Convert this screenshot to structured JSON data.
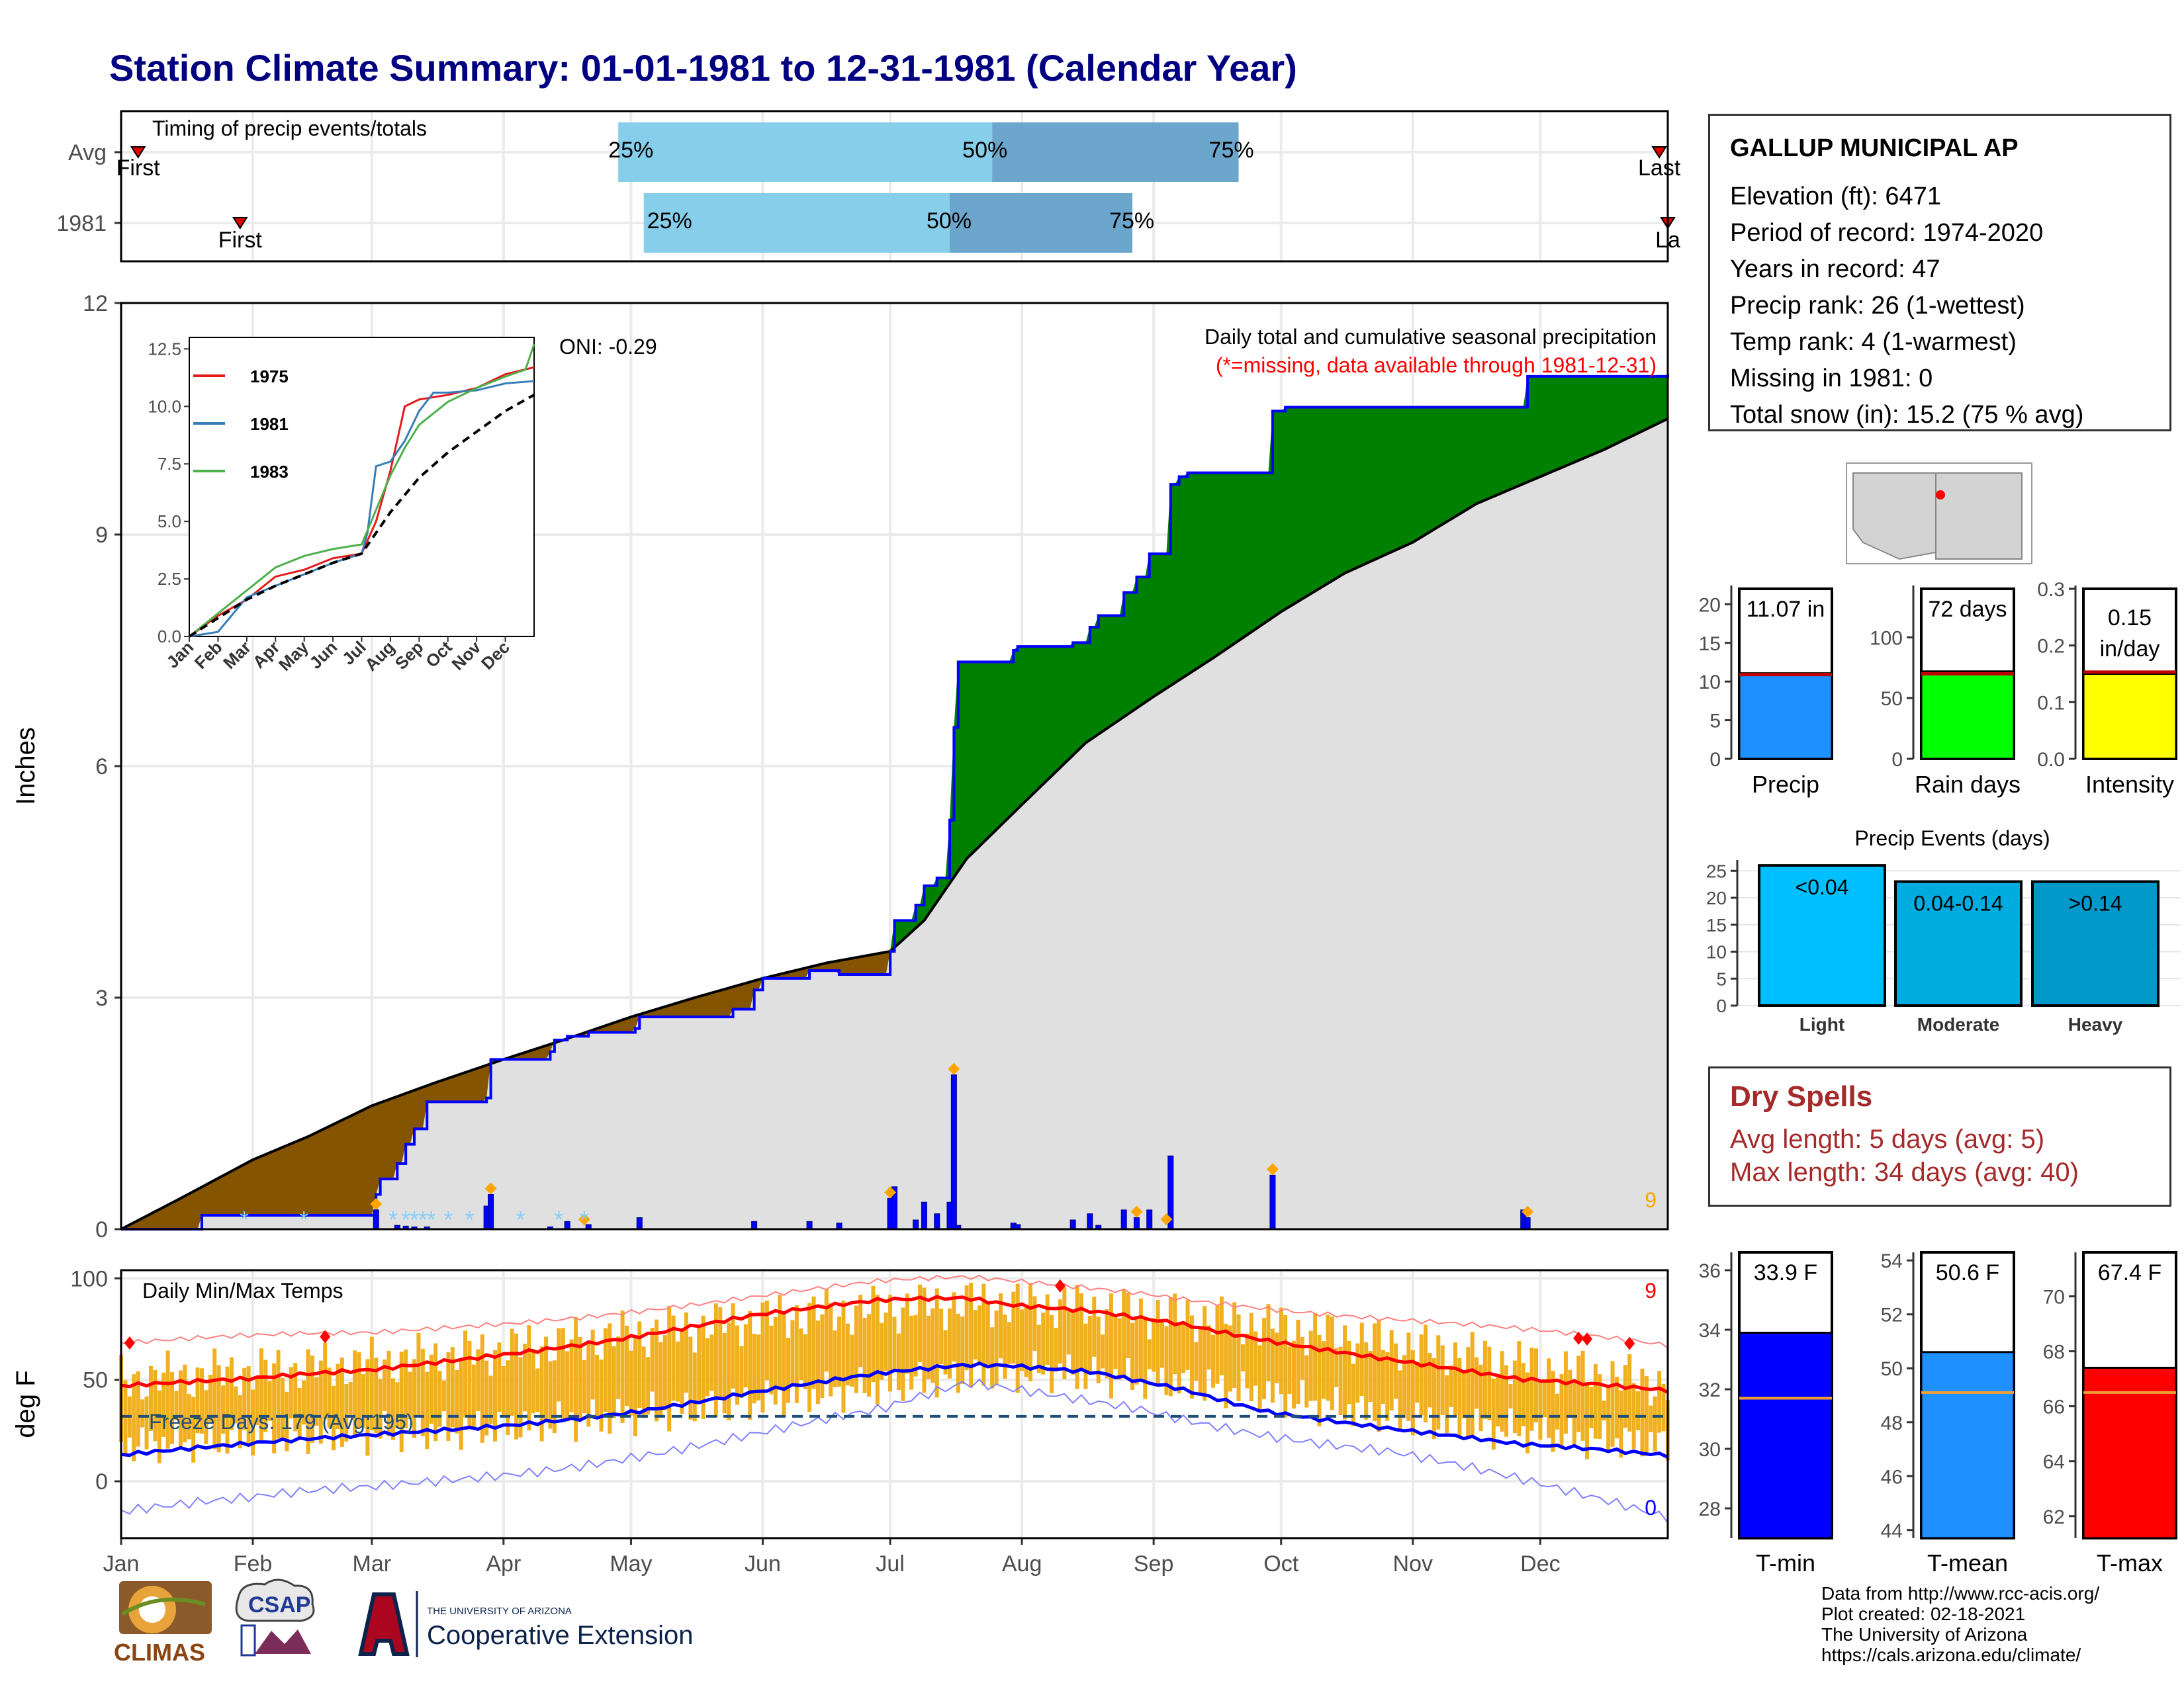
{
  "title": "Station Climate Summary: 01-01-1981 to 12-31-1981 (Calendar Year)",
  "station": {
    "name": "GALLUP MUNICIPAL AP",
    "lines": [
      "Elevation (ft): 6471",
      "Period of record: 1974-2020",
      "Years in record: 47",
      "Precip rank: 26 (1-wettest)",
      "Temp rank: 4 (1-warmest)",
      "Missing in 1981: 0",
      "Total snow (in): 15.2 (75 % avg)"
    ]
  },
  "dry_spells": {
    "title": "Dry Spells",
    "avg_length": "Avg length: 5 days (avg: 5)",
    "max_length": "Max length: 34 days (avg: 40)"
  },
  "credits": [
    "Data from http://www.rcc-acis.org/",
    "Plot created: 02-18-2021",
    "The University of Arizona",
    "https://cals.arizona.edu/climate/"
  ],
  "logos": {
    "climas": "CLIMAS",
    "csap": "CSAP",
    "ua_small": "THE UNIVERSITY OF ARIZONA",
    "ua_big": "Cooperative Extension"
  },
  "colors": {
    "title": "#000080",
    "avg_fill": "#e0e0e0",
    "above_fill": "#008000",
    "below_fill": "#845400",
    "obs_line": "#0000ff",
    "temp_bar": "#f0b020",
    "tmax": "#ff0000",
    "tmin": "#0000ff",
    "dry": "#a52a2a"
  },
  "chart_data": [
    {
      "id": "timing",
      "type": "bar",
      "title": "Timing of precip events/totals",
      "rows": [
        {
          "label": "Avg",
          "first_doy": 5,
          "last_doy": 363,
          "q25_doy": 118,
          "q50_doy": 206,
          "q75_doy": 264,
          "first_label": "First",
          "last_label": "Last"
        },
        {
          "label": "1981",
          "first_doy": 29,
          "last_doy": 365,
          "q25_doy": 124,
          "q50_doy": 196,
          "q75_doy": 239,
          "first_label": "First",
          "last_label": "La"
        }
      ],
      "quantile_labels": [
        "25%",
        "50%",
        "75%"
      ]
    },
    {
      "id": "precip",
      "type": "area",
      "ylabel": "Inches",
      "ylim": [
        0,
        12
      ],
      "yticks": [
        0,
        3,
        6,
        9,
        12
      ],
      "months": [
        "Jan",
        "Feb",
        "Mar",
        "Apr",
        "May",
        "Jun",
        "Jul",
        "Aug",
        "Sep",
        "Oct",
        "Nov",
        "Dec"
      ],
      "label_top": "Daily total and cumulative seasonal precipitation",
      "label_missing": "(*=missing, data available through 1981-12-31)",
      "oni": "ONI: -0.29",
      "corner_count": "9",
      "avg_cumulative": {
        "doy": [
          1,
          15,
          32,
          45,
          60,
          75,
          91,
          105,
          121,
          136,
          152,
          167,
          182,
          190,
          200,
          213,
          228,
          244,
          258,
          274,
          289,
          305,
          320,
          335,
          350,
          365
        ],
        "inches": [
          0.0,
          0.4,
          0.9,
          1.2,
          1.6,
          1.9,
          2.2,
          2.45,
          2.75,
          3.0,
          3.25,
          3.45,
          3.6,
          4.0,
          4.8,
          5.5,
          6.3,
          6.9,
          7.4,
          8.0,
          8.5,
          8.9,
          9.4,
          9.75,
          10.1,
          10.5
        ]
      },
      "obs_cumulative": {
        "doy": [
          1,
          20,
          60,
          61,
          62,
          66,
          68,
          70,
          73,
          81,
          87,
          88,
          102,
          103,
          106,
          111,
          122,
          123,
          145,
          150,
          152,
          163,
          170,
          182,
          183,
          188,
          190,
          193,
          196,
          197,
          198,
          200,
          211,
          212,
          225,
          229,
          231,
          237,
          240,
          243,
          248,
          250,
          252,
          267,
          272,
          275,
          331,
          332,
          365
        ],
        "inches": [
          0.0,
          0.18,
          0.18,
          0.45,
          0.65,
          0.85,
          1.1,
          1.3,
          1.65,
          1.65,
          1.7,
          2.2,
          2.3,
          2.45,
          2.5,
          2.55,
          2.6,
          2.75,
          2.85,
          3.1,
          3.25,
          3.35,
          3.3,
          3.6,
          4.0,
          4.2,
          4.45,
          4.55,
          5.3,
          6.5,
          7.35,
          7.35,
          7.5,
          7.55,
          7.6,
          7.8,
          7.95,
          8.25,
          8.45,
          8.75,
          9.65,
          9.75,
          9.8,
          9.8,
          10.6,
          10.65,
          10.65,
          11.05,
          11.07
        ]
      },
      "daily": {
        "doy": [
          61,
          66,
          68,
          70,
          73,
          87,
          88,
          102,
          106,
          111,
          123,
          150,
          163,
          170,
          182,
          183,
          188,
          190,
          193,
          196,
          197,
          198,
          211,
          212,
          225,
          229,
          231,
          237,
          240,
          243,
          248,
          272,
          331,
          332
        ],
        "inches": [
          0.25,
          0.05,
          0.04,
          0.03,
          0.03,
          0.3,
          0.45,
          0.03,
          0.1,
          0.06,
          0.15,
          0.1,
          0.1,
          0.08,
          0.4,
          0.55,
          0.12,
          0.35,
          0.2,
          0.35,
          2.0,
          0.05,
          0.08,
          0.06,
          0.12,
          0.2,
          0.05,
          0.25,
          0.15,
          0.25,
          0.95,
          0.7,
          0.25,
          0.15
        ]
      },
      "record_days": [
        61,
        88,
        110,
        182,
        197,
        240,
        247,
        272,
        332
      ]
    },
    {
      "id": "inset",
      "type": "line",
      "xticks": [
        "Jan",
        "Feb",
        "Mar",
        "Apr",
        "May",
        "Jun",
        "Jul",
        "Aug",
        "Sep",
        "Oct",
        "Nov",
        "Dec"
      ],
      "ylim": [
        0,
        12.5
      ],
      "yticks": [
        "0.0",
        "2.5",
        "5.0",
        "7.5",
        "10.0",
        "12.5"
      ],
      "series": [
        {
          "name": "1975",
          "color": "#e41a1c",
          "x": [
            0,
            1,
            2,
            3,
            4,
            5,
            6,
            6.5,
            7,
            7.5,
            8,
            9,
            10,
            11,
            12
          ],
          "y": [
            0,
            0.9,
            1.6,
            2.6,
            2.9,
            3.4,
            3.6,
            5.0,
            7.2,
            10.0,
            10.3,
            10.5,
            10.8,
            11.4,
            11.7
          ]
        },
        {
          "name": "1981",
          "color": "#377eb8",
          "x": [
            0,
            1,
            2,
            3,
            4,
            5,
            6,
            6.2,
            6.5,
            7,
            7.5,
            8,
            8.5,
            9,
            10,
            11,
            12
          ],
          "y": [
            0,
            0.2,
            1.7,
            2.2,
            2.7,
            3.2,
            3.6,
            4.5,
            7.4,
            7.6,
            8.5,
            9.8,
            10.6,
            10.6,
            10.7,
            11.0,
            11.1
          ]
        },
        {
          "name": "1983",
          "color": "#4daf4a",
          "x": [
            0,
            1,
            2,
            3,
            4,
            5,
            6,
            6.5,
            7,
            7.5,
            8,
            9,
            10,
            11,
            11.7,
            12
          ],
          "y": [
            0,
            1.0,
            2.0,
            3.0,
            3.5,
            3.8,
            4.0,
            5.5,
            7.0,
            8.2,
            9.2,
            10.2,
            10.8,
            11.3,
            11.6,
            12.7
          ]
        },
        {
          "name": "",
          "color": "#000000",
          "x": [
            0,
            1,
            2,
            3,
            4,
            5,
            6,
            7,
            8,
            9,
            10,
            11,
            12
          ],
          "y": [
            0,
            0.8,
            1.6,
            2.2,
            2.7,
            3.2,
            3.6,
            5.4,
            6.9,
            8.0,
            8.9,
            9.8,
            10.5
          ]
        }
      ]
    },
    {
      "id": "totals",
      "type": "bar",
      "panels": [
        {
          "label": "Precip",
          "value_text": "11.07 in",
          "value": 11.07,
          "avg": 10.9,
          "ylim": [
            0,
            22
          ],
          "yticks": [
            0,
            5,
            10,
            15,
            20
          ],
          "color": "#1e90ff"
        },
        {
          "label": "Rain days",
          "value_text": "72 days",
          "value": 72,
          "avg": 70,
          "ylim": [
            0,
            140
          ],
          "yticks": [
            0,
            50,
            100
          ],
          "color": "#00ff00"
        },
        {
          "label": "Intensity",
          "value_text_1": "0.15",
          "value_text_2": "in/day",
          "value": 0.15,
          "avg": 0.153,
          "ylim": [
            0,
            0.3
          ],
          "yticks": [
            "0.0",
            "0.1",
            "0.2",
            "0.3"
          ],
          "color": "#ffff00"
        }
      ]
    },
    {
      "id": "events",
      "type": "bar",
      "title": "Precip Events (days)",
      "categories": [
        "Light",
        "Moderate",
        "Heavy"
      ],
      "bin_labels": [
        "<0.04",
        "0.04-0.14",
        ">0.14"
      ],
      "values": [
        26,
        23,
        23
      ],
      "ylim": [
        0,
        27
      ],
      "yticks": [
        0,
        5,
        10,
        15,
        20,
        25
      ],
      "colors": [
        "#00bfff",
        "#00acdf",
        "#0099c9"
      ]
    },
    {
      "id": "temps",
      "type": "line",
      "title": "Daily Min/Max Temps",
      "ylabel": "deg F",
      "ylim": [
        -28,
        104
      ],
      "yticks": [
        0,
        50,
        100
      ],
      "months": [
        "Jan",
        "Feb",
        "Mar",
        "Apr",
        "May",
        "Jun",
        "Jul",
        "Aug",
        "Sep",
        "Oct",
        "Nov",
        "Dec"
      ],
      "freeze_label": "Freeze Days: 179 (Avg:195)",
      "freeze_line": 32,
      "count_high": "9",
      "count_low": "0",
      "normal_max": {
        "doy": [
          1,
          30,
          60,
          90,
          120,
          150,
          180,
          200,
          210,
          230,
          250,
          270,
          300,
          330,
          365
        ],
        "f": [
          47,
          49,
          54,
          63,
          72,
          82,
          88,
          89,
          86,
          84,
          79,
          71,
          60,
          49,
          44
        ]
      },
      "normal_min": {
        "doy": [
          1,
          30,
          60,
          90,
          120,
          150,
          180,
          200,
          210,
          230,
          250,
          270,
          300,
          330,
          365
        ],
        "f": [
          13,
          17,
          22,
          28,
          35,
          44,
          52,
          56,
          56,
          54,
          47,
          36,
          26,
          17,
          12
        ]
      },
      "record_max": {
        "doy": [
          1,
          60,
          120,
          180,
          200,
          240,
          300,
          365
        ],
        "f": [
          68,
          72,
          85,
          97,
          99,
          94,
          80,
          66
        ]
      },
      "record_min": {
        "doy": [
          1,
          30,
          60,
          120,
          180,
          200,
          240,
          300,
          340,
          365
        ],
        "f": [
          -15,
          -12,
          -5,
          15,
          32,
          45,
          38,
          15,
          -8,
          -20
        ]
      },
      "obs_mean_max": {
        "doy": [
          1,
          40,
          80,
          120,
          160,
          200,
          220,
          260,
          300,
          340,
          365
        ],
        "f": [
          50,
          55,
          62,
          72,
          82,
          88,
          87,
          80,
          68,
          55,
          48
        ]
      },
      "obs_mean_min": {
        "doy": [
          1,
          40,
          80,
          120,
          160,
          200,
          220,
          260,
          300,
          340,
          365
        ],
        "f": [
          18,
          22,
          25,
          32,
          42,
          52,
          54,
          46,
          32,
          22,
          18
        ]
      },
      "record_high_days": [
        3,
        49,
        222,
        344,
        346,
        356
      ]
    },
    {
      "id": "temp_summary",
      "type": "bar",
      "panels": [
        {
          "label": "T-min",
          "value_text": "33.9 F",
          "value": 33.9,
          "avg": 31.7,
          "ylim": [
            27,
            36.6
          ],
          "yticks": [
            28,
            30,
            32,
            34,
            36
          ],
          "color": "#0000ff"
        },
        {
          "label": "T-mean",
          "value_text": "50.6 F",
          "value": 50.6,
          "avg": 49.1,
          "ylim": [
            43.7,
            54.3
          ],
          "yticks": [
            44,
            46,
            48,
            50,
            52,
            54
          ],
          "color": "#1e90ff"
        },
        {
          "label": "T-max",
          "value_text": "67.4 F",
          "value": 67.4,
          "avg": 66.5,
          "ylim": [
            61.2,
            71.6
          ],
          "yticks": [
            62,
            64,
            66,
            68,
            70
          ],
          "color": "#ff0000"
        }
      ]
    }
  ]
}
